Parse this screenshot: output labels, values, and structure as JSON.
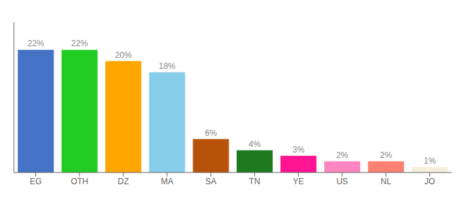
{
  "chart_data": {
    "type": "bar",
    "categories": [
      "EG",
      "OTH",
      "DZ",
      "MA",
      "SA",
      "TN",
      "YE",
      "US",
      "NL",
      "JO"
    ],
    "values": [
      22,
      22,
      20,
      18,
      6,
      4,
      3,
      2,
      2,
      1
    ],
    "value_labels": [
      "22%",
      "22%",
      "20%",
      "18%",
      "6%",
      "4%",
      "3%",
      "2%",
      "2%",
      "1%"
    ],
    "colors": [
      "#4472C4",
      "#22CC22",
      "#FFA500",
      "#87CEEB",
      "#B8520A",
      "#1E7A1E",
      "#FF1493",
      "#FF85C0",
      "#FA8072",
      "#F5F0DC"
    ],
    "ylim": [
      0,
      27
    ],
    "data_labels": true,
    "tick_labels": "x",
    "grid": false
  }
}
